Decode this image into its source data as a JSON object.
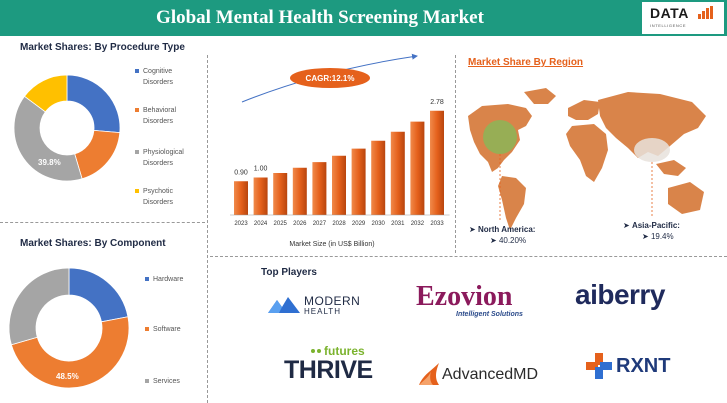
{
  "header": {
    "title": "Global Mental Health Screening Market"
  },
  "logo": {
    "main": "DATA",
    "sub": "INTELLIGENCE"
  },
  "procedure": {
    "title": "Market Shares: By Procedure Type",
    "donut_label": "39.8%"
  },
  "component": {
    "title": "Market Shares: By Component",
    "donut_label": "48.5%"
  },
  "region": {
    "title": "Market Share By Region",
    "north_america_label": "North America:",
    "north_america_value": "40.20%",
    "asia_pacific_label": "Asia-Pacific:",
    "asia_pacific_value": "19.4%"
  },
  "players": {
    "title": "Top Players",
    "modern_health_line1": "MODERN",
    "modern_health_line2": "HEALTH",
    "ezovion_name": "Ezovion",
    "ezovion_tagline": "Intelligent Solutions",
    "aiberry": "aiberry",
    "thrive_small": "futures",
    "thrive_big": "THRIVE",
    "advancedmd": "AdvancedMD",
    "rxnt": "RXNT"
  },
  "colors": {
    "header": "#1d9a80",
    "blue": "#4472c4",
    "orange": "#ed7d31",
    "gray": "#a5a5a5",
    "yellow": "#ffc000",
    "bar": "#e5611c"
  },
  "chart_data": [
    {
      "type": "pie",
      "title": "Market Shares: By Procedure Type",
      "categories": [
        "Cognitive Disorders",
        "Behavioral Disorders",
        "Physiological Disorders",
        "Psychotic Disorders"
      ],
      "values": [
        26.4,
        19.0,
        39.8,
        14.8
      ],
      "data_labels": [
        "",
        "",
        "39.8%",
        ""
      ],
      "legend": "right"
    },
    {
      "type": "pie",
      "title": "Market Shares: By Component",
      "categories": [
        "Hardware",
        "Software",
        "Services"
      ],
      "values": [
        22.0,
        48.5,
        29.5
      ],
      "data_labels": [
        "",
        "48.5%",
        ""
      ],
      "legend": "right"
    },
    {
      "type": "bar",
      "title": "",
      "xlabel": "Market Size (in US$ Billion)",
      "categories": [
        "2023",
        "2024",
        "2025",
        "2026",
        "2027",
        "2028",
        "2029",
        "2030",
        "2031",
        "2032",
        "2033"
      ],
      "values": [
        0.9,
        1.0,
        1.12,
        1.26,
        1.41,
        1.58,
        1.77,
        1.98,
        2.22,
        2.49,
        2.78
      ],
      "data_labels": [
        "0.90",
        "1.00",
        "",
        "",
        "",
        "",
        "",
        "",
        "",
        "",
        "2.78"
      ],
      "annotation": "CAGR:12.1%",
      "ylim": [
        0,
        3.2
      ]
    }
  ]
}
